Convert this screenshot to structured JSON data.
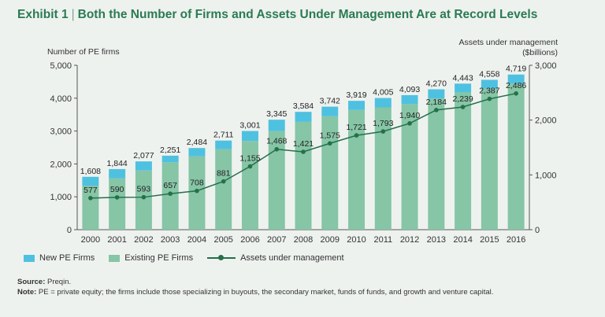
{
  "exhibit": {
    "label": "Exhibit 1",
    "separator": "|",
    "title": "Both the Number of Firms and Assets Under Management Are at Record Levels"
  },
  "axes": {
    "left_title": "Number of PE firms",
    "right_title_line1": "Assets under management",
    "right_title_line2": "($billions)"
  },
  "legend": {
    "new_firms": "New PE Firms",
    "existing_firms": "Existing PE Firms",
    "aum": "Assets under management"
  },
  "notes": {
    "source_label": "Source:",
    "source_text": "Preqin.",
    "note_label": "Note:",
    "note_text": "PE = private equity; the firms include those specializing in buyouts, the secondary market, funds of funds, and growth and venture capital."
  },
  "colors": {
    "new_firms": "#4fc1e0",
    "existing_firms": "#86c5a6",
    "aum_line": "#24704a",
    "title": "#2a7b52"
  },
  "chart_data": {
    "type": "bar",
    "categories": [
      "2000",
      "2001",
      "2002",
      "2003",
      "2004",
      "2005",
      "2006",
      "2007",
      "2008",
      "2009",
      "2010",
      "2011",
      "2012",
      "2013",
      "2014",
      "2015",
      "2016"
    ],
    "total_firms": [
      1608,
      1844,
      2077,
      2251,
      2484,
      2711,
      3001,
      3345,
      3584,
      3742,
      3919,
      4005,
      4093,
      4270,
      4443,
      4558,
      4719
    ],
    "total_firm_labels": [
      "1,608",
      "1,844",
      "2,077",
      "2,251",
      "2,484",
      "2,711",
      "3,001",
      "3,345",
      "3,584",
      "3,742",
      "3,919",
      "4,005",
      "4,093",
      "4,270",
      "4,443",
      "4,558",
      "4,719"
    ],
    "series": [
      {
        "name": "Existing PE Firms",
        "values": [
          1340,
          1560,
          1800,
          2050,
          2230,
          2450,
          2700,
          3000,
          3280,
          3450,
          3640,
          3720,
          3820,
          3990,
          4170,
          4290,
          4440
        ]
      },
      {
        "name": "New PE Firms",
        "values": [
          268,
          284,
          277,
          201,
          254,
          261,
          301,
          345,
          304,
          292,
          279,
          285,
          273,
          280,
          273,
          268,
          279
        ]
      }
    ],
    "aum": {
      "name": "Assets under management",
      "values": [
        577,
        590,
        593,
        657,
        708,
        881,
        1155,
        1468,
        1421,
        1575,
        1721,
        1793,
        1940,
        2184,
        2239,
        2387,
        2486
      ],
      "labels": [
        "577",
        "590",
        "593",
        "657",
        "708",
        "881",
        "1,155",
        "1,468",
        "1,421",
        "1,575",
        "1,721",
        "1,793",
        "1,940",
        "2,184",
        "2,239",
        "2,387",
        "2,486"
      ]
    },
    "ylim_left": [
      0,
      5000
    ],
    "yticks_left": [
      "0",
      "1,000",
      "2,000",
      "3,000",
      "4,000",
      "5,000"
    ],
    "ylim_right": [
      0,
      3000
    ],
    "yticks_right": [
      "0",
      "1,000",
      "2,000",
      "3,000"
    ],
    "grid": false,
    "legend_position": "bottom-left"
  }
}
